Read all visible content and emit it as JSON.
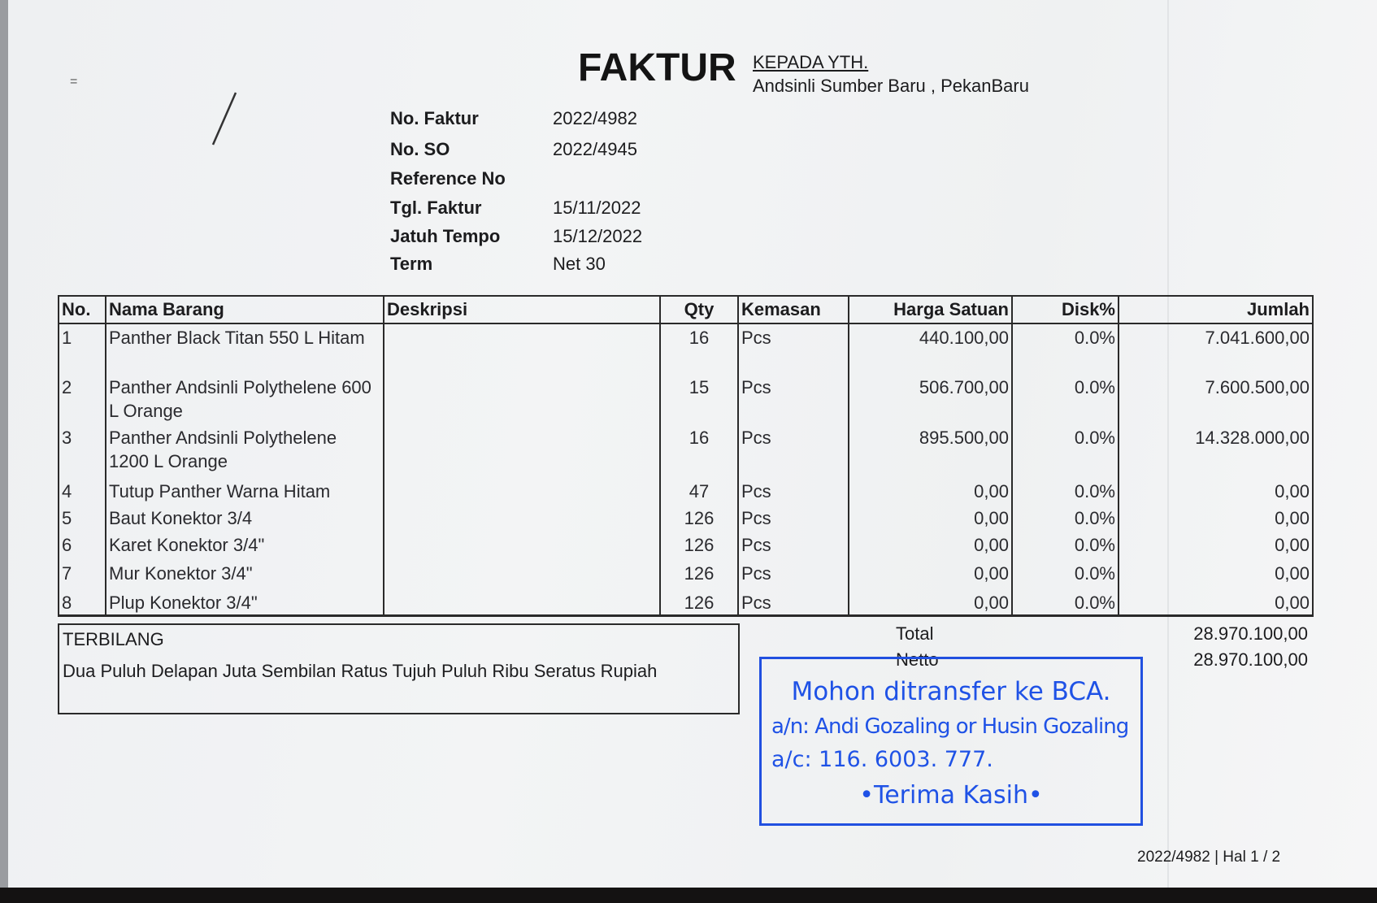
{
  "header": {
    "title": "FAKTUR",
    "recipient_label": "KEPADA YTH.",
    "recipient": "Andsinli Sumber Baru , PekanBaru"
  },
  "meta": [
    {
      "label": "No. Faktur",
      "value": "2022/4982"
    },
    {
      "label": "No. SO",
      "value": "2022/4945"
    },
    {
      "label": "Reference No",
      "value": ""
    },
    {
      "label": "Tgl. Faktur",
      "value": "15/11/2022"
    },
    {
      "label": "Jatuh Tempo",
      "value": "15/12/2022"
    },
    {
      "label": "Term",
      "value": "Net 30"
    }
  ],
  "table": {
    "columns": [
      "No.",
      "Nama Barang",
      "Deskripsi",
      "Qty",
      "Kemasan",
      "Harga Satuan",
      "Disk%",
      "Jumlah"
    ],
    "rows": [
      {
        "no": "1",
        "nama": "Panther Black Titan 550 L Hitam",
        "deskripsi": "",
        "qty": "16",
        "kemasan": "Pcs",
        "harga": "440.100,00",
        "disk": "0.0%",
        "jumlah": "7.041.600,00"
      },
      {
        "no": "2",
        "nama": "Panther Andsinli Polythelene 600 L Orange",
        "deskripsi": "",
        "qty": "15",
        "kemasan": "Pcs",
        "harga": "506.700,00",
        "disk": "0.0%",
        "jumlah": "7.600.500,00"
      },
      {
        "no": "3",
        "nama": "Panther Andsinli Polythelene 1200 L Orange",
        "deskripsi": "",
        "qty": "16",
        "kemasan": "Pcs",
        "harga": "895.500,00",
        "disk": "0.0%",
        "jumlah": "14.328.000,00"
      },
      {
        "no": "4",
        "nama": "Tutup Panther Warna Hitam",
        "deskripsi": "",
        "qty": "47",
        "kemasan": "Pcs",
        "harga": "0,00",
        "disk": "0.0%",
        "jumlah": "0,00"
      },
      {
        "no": "5",
        "nama": "Baut Konektor 3/4",
        "deskripsi": "",
        "qty": "126",
        "kemasan": "Pcs",
        "harga": "0,00",
        "disk": "0.0%",
        "jumlah": "0,00"
      },
      {
        "no": "6",
        "nama": "Karet Konektor 3/4\"",
        "deskripsi": "",
        "qty": "126",
        "kemasan": "Pcs",
        "harga": "0,00",
        "disk": "0.0%",
        "jumlah": "0,00"
      },
      {
        "no": "7",
        "nama": "Mur Konektor 3/4\"",
        "deskripsi": "",
        "qty": "126",
        "kemasan": "Pcs",
        "harga": "0,00",
        "disk": "0.0%",
        "jumlah": "0,00"
      },
      {
        "no": "8",
        "nama": "Plup Konektor 3/4\"",
        "deskripsi": "",
        "qty": "126",
        "kemasan": "Pcs",
        "harga": "0,00",
        "disk": "0.0%",
        "jumlah": "0,00"
      }
    ]
  },
  "terbilang": {
    "label": "TERBILANG",
    "text": "Dua Puluh Delapan Juta Sembilan Ratus Tujuh Puluh Ribu Seratus Rupiah"
  },
  "summary": {
    "total_label": "Total",
    "total_value": "28.970.100,00",
    "netto_label": "Netto",
    "netto_value": "28.970.100,00"
  },
  "stamp": {
    "line1": "Mohon ditransfer ke BCA.",
    "line2": "a/n: Andi Gozaling or Husin Gozaling",
    "line3": "a/c: 116. 6003. 777.",
    "line4": "•Terima Kasih•",
    "color": "#1f52e6"
  },
  "footer": {
    "page_info": "2022/4982 | Hal 1 / 2"
  }
}
